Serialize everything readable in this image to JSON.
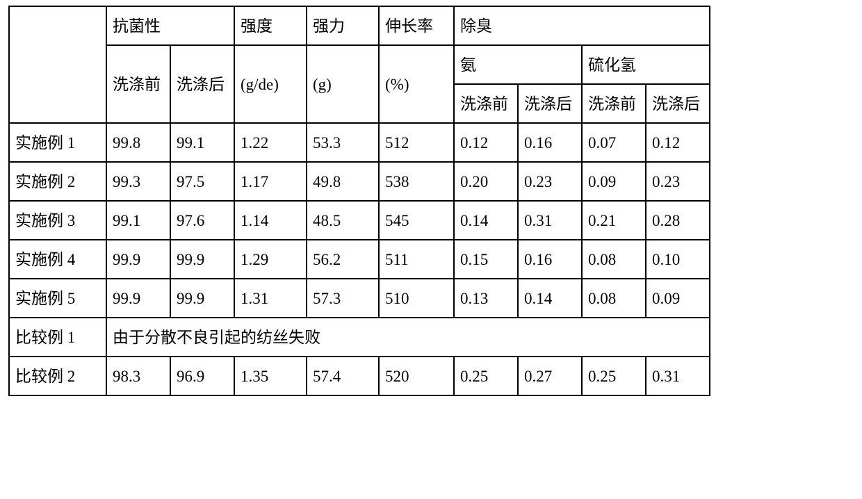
{
  "headers": {
    "antibacterial": "抗菌性",
    "strength_de": "强度",
    "strength_g": "强力",
    "elongation": "伸长率",
    "deodor": "除臭",
    "before_wash": "洗涤前",
    "after_wash": "洗涤后",
    "unit_gde": "(g/de)",
    "unit_g": "(g)",
    "unit_pct": "(%)",
    "ammonia": "氨",
    "h2s": "硫化氢"
  },
  "rows": [
    {
      "label": "实施例 1",
      "vals": [
        "99.8",
        "99.1",
        "1.22",
        "53.3",
        "512",
        "0.12",
        "0.16",
        "0.07",
        "0.12"
      ]
    },
    {
      "label": "实施例 2",
      "vals": [
        "99.3",
        "97.5",
        "1.17",
        "49.8",
        "538",
        "0.20",
        "0.23",
        "0.09",
        "0.23"
      ]
    },
    {
      "label": "实施例 3",
      "vals": [
        "99.1",
        "97.6",
        "1.14",
        "48.5",
        "545",
        "0.14",
        "0.31",
        "0.21",
        "0.28"
      ]
    },
    {
      "label": "实施例 4",
      "vals": [
        "99.9",
        "99.9",
        "1.29",
        "56.2",
        "511",
        "0.15",
        "0.16",
        "0.08",
        "0.10"
      ]
    },
    {
      "label": "实施例 5",
      "vals": [
        "99.9",
        "99.9",
        "1.31",
        "57.3",
        "510",
        "0.13",
        "0.14",
        "0.08",
        "0.09"
      ]
    }
  ],
  "fail_row": {
    "label": "比较例 1",
    "note": "由于分散不良引起的纺丝失败"
  },
  "cmp2": {
    "label": "比较例 2",
    "vals": [
      "98.3",
      "96.9",
      "1.35",
      "57.4",
      "520",
      "0.25",
      "0.27",
      "0.25",
      "0.31"
    ]
  }
}
